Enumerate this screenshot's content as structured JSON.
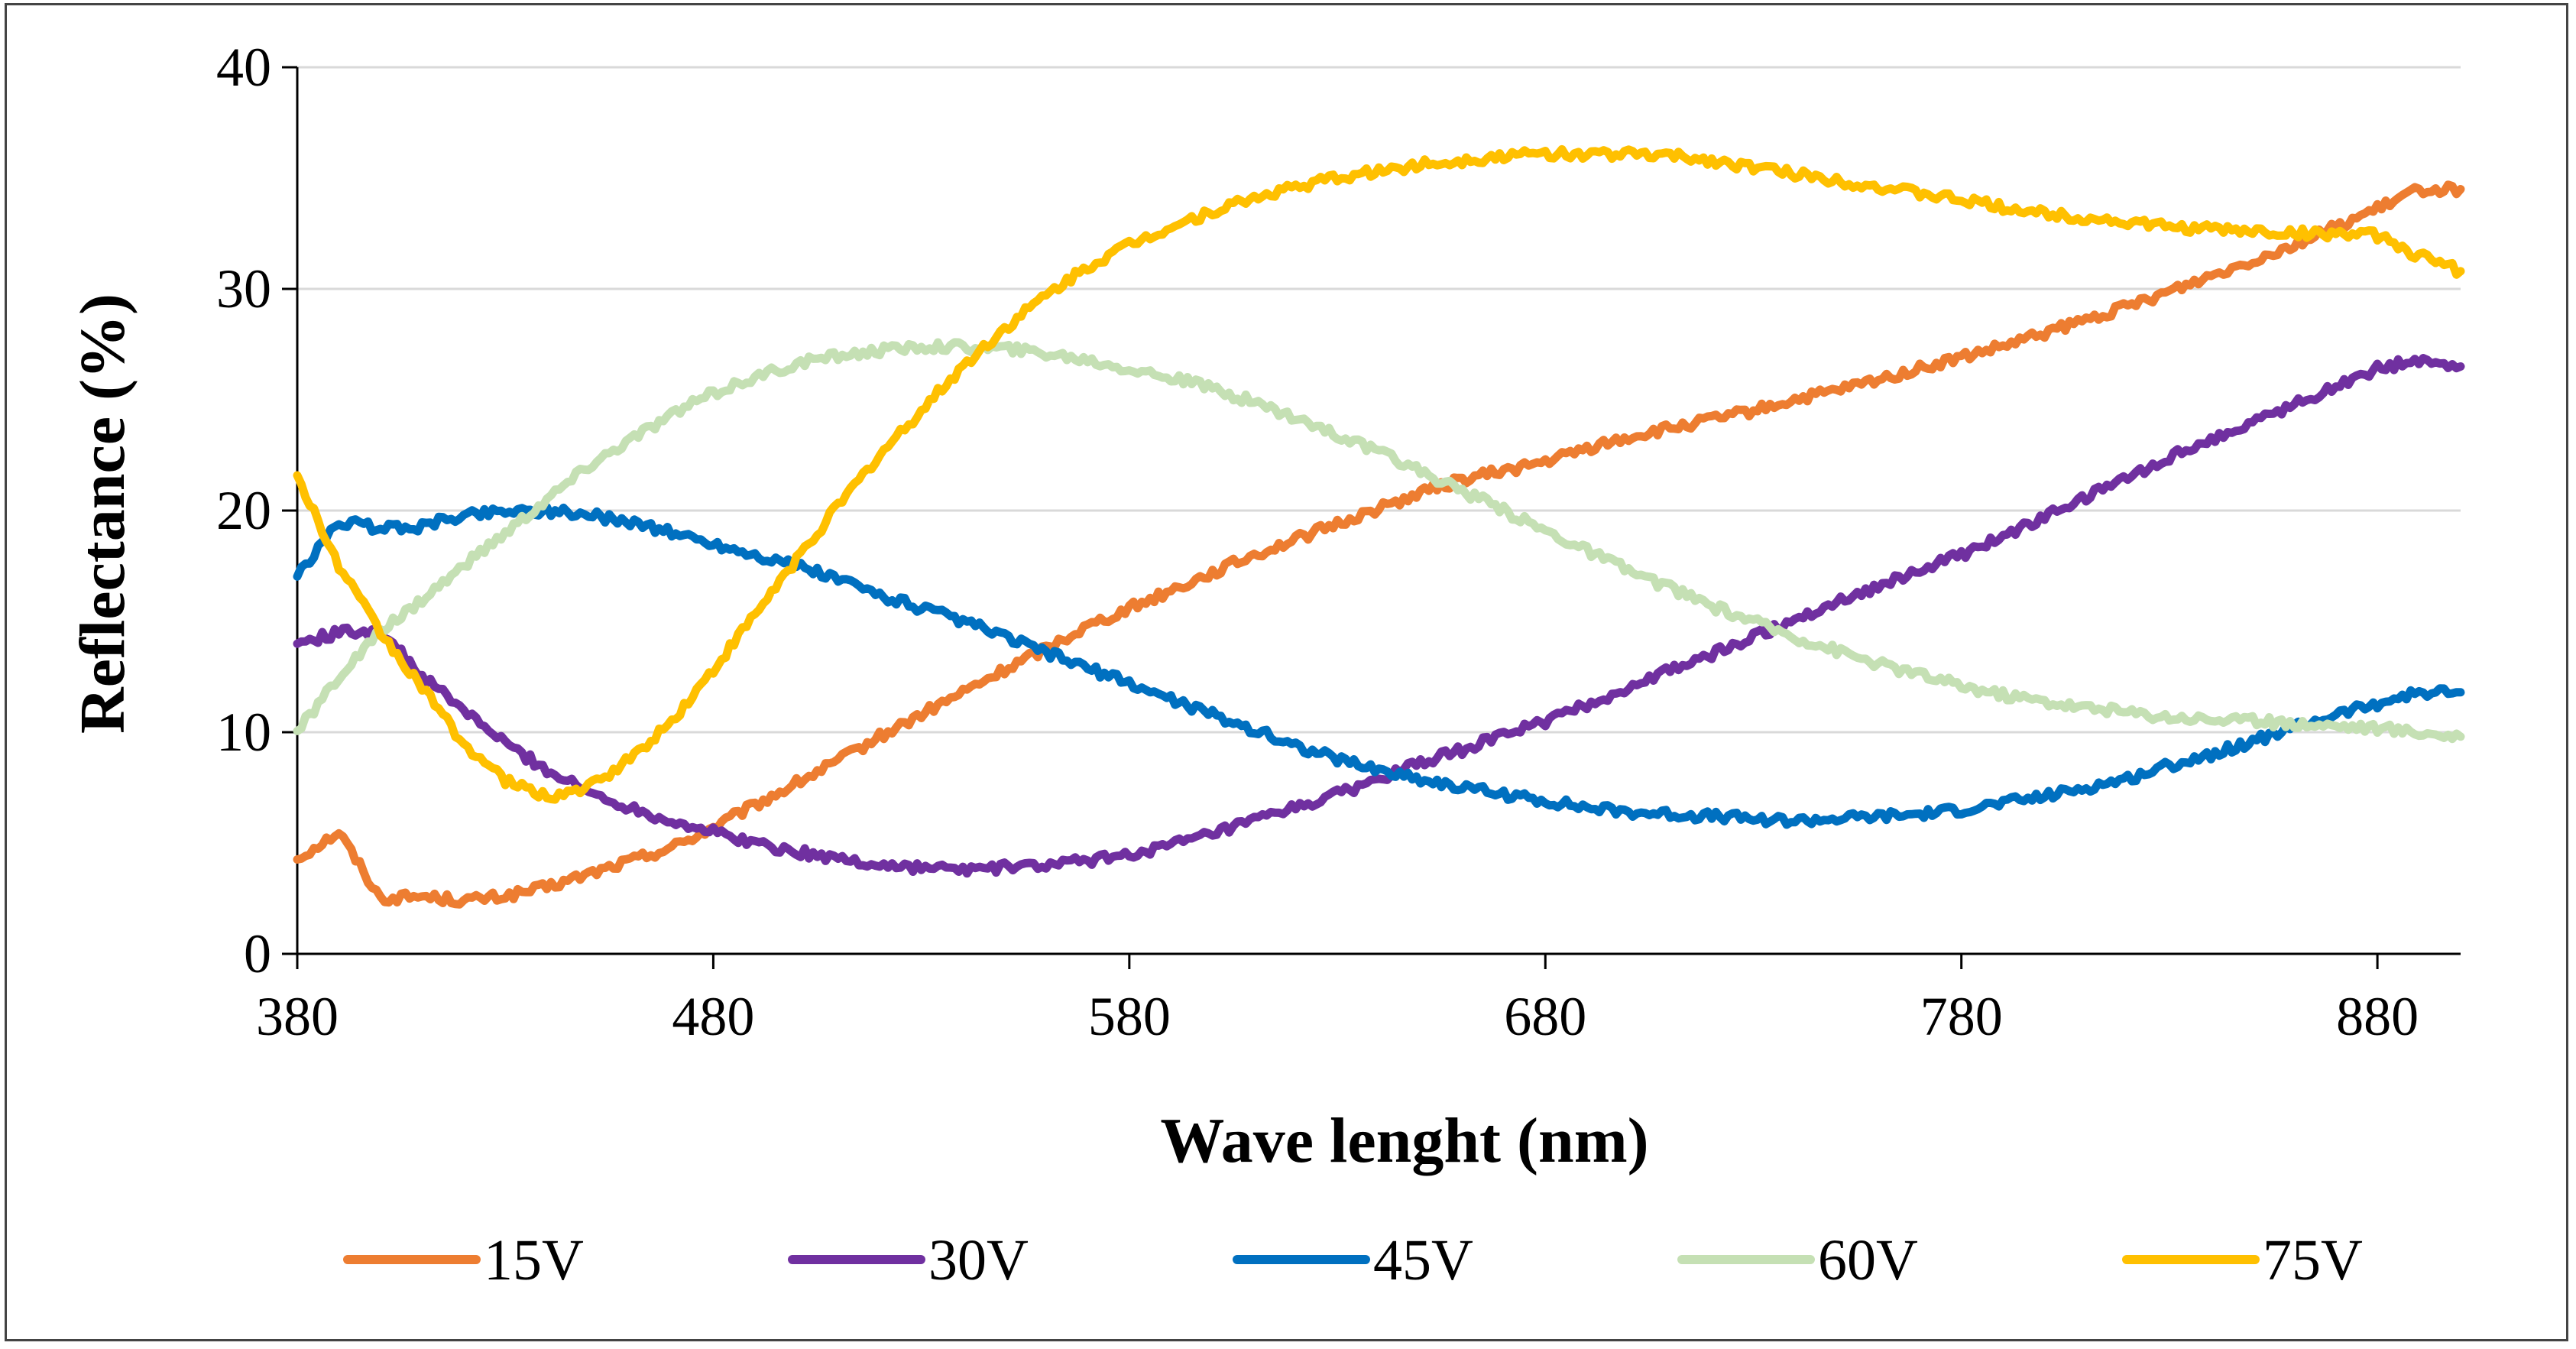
{
  "chart_data": {
    "type": "line",
    "title": "",
    "xlabel": "Wave lenght (nm)",
    "ylabel": "Reflectance (%)",
    "xlim": [
      380,
      900
    ],
    "ylim": [
      0,
      40
    ],
    "xticks": [
      380,
      480,
      580,
      680,
      780,
      880
    ],
    "yticks": [
      0,
      10,
      20,
      30,
      40
    ],
    "grid": "horizontal",
    "legend_position": "bottom",
    "x": [
      380,
      390,
      400,
      410,
      420,
      430,
      440,
      450,
      460,
      470,
      480,
      490,
      500,
      510,
      520,
      530,
      540,
      550,
      560,
      570,
      580,
      590,
      600,
      610,
      620,
      630,
      640,
      650,
      660,
      670,
      680,
      690,
      700,
      710,
      720,
      730,
      740,
      750,
      760,
      770,
      780,
      790,
      800,
      810,
      820,
      830,
      840,
      850,
      860,
      870,
      880,
      890,
      900
    ],
    "series": [
      {
        "name": "15V",
        "color": "#ED7D31",
        "values": [
          4.3,
          5.5,
          2.5,
          2.6,
          2.4,
          2.6,
          3.0,
          3.6,
          4.2,
          4.8,
          5.7,
          6.7,
          7.7,
          8.7,
          9.8,
          10.8,
          11.8,
          12.8,
          13.8,
          14.8,
          15.6,
          16.4,
          17.2,
          18.0,
          18.7,
          19.4,
          20.1,
          20.8,
          21.4,
          21.8,
          22.2,
          22.8,
          23.3,
          23.7,
          24.1,
          24.5,
          25.0,
          25.4,
          25.9,
          26.4,
          26.9,
          27.4,
          28.0,
          28.6,
          29.2,
          29.9,
          30.6,
          31.3,
          32.0,
          32.8,
          33.6,
          34.5,
          34.5
        ]
      },
      {
        "name": "30V",
        "color": "#7030A0",
        "values": [
          14.0,
          14.5,
          14.6,
          12.5,
          11.0,
          9.5,
          8.3,
          7.3,
          6.6,
          6.0,
          5.5,
          5.0,
          4.6,
          4.3,
          4.0,
          3.9,
          3.8,
          3.9,
          4.0,
          4.2,
          4.5,
          4.9,
          5.4,
          6.0,
          6.6,
          7.2,
          7.9,
          8.6,
          9.2,
          9.9,
          10.5,
          11.2,
          12.0,
          12.8,
          13.5,
          14.3,
          15.1,
          15.9,
          16.6,
          17.3,
          18.0,
          18.8,
          19.7,
          20.6,
          21.5,
          22.4,
          23.2,
          24.0,
          24.8,
          25.6,
          26.4,
          26.8,
          26.5
        ]
      },
      {
        "name": "45V",
        "color": "#0070C0",
        "values": [
          17.0,
          19.5,
          19.2,
          19.3,
          19.8,
          20.0,
          20.0,
          19.8,
          19.5,
          19.0,
          18.5,
          18.0,
          17.5,
          16.9,
          16.2,
          15.6,
          15.0,
          14.3,
          13.6,
          12.9,
          12.2,
          11.5,
          10.8,
          10.1,
          9.4,
          8.8,
          8.3,
          7.9,
          7.5,
          7.2,
          6.9,
          6.6,
          6.4,
          6.3,
          6.2,
          6.1,
          6.0,
          6.1,
          6.2,
          6.3,
          6.5,
          6.8,
          7.1,
          7.5,
          7.9,
          8.5,
          9.0,
          9.6,
          10.2,
          10.8,
          11.3,
          11.8,
          11.8
        ]
      },
      {
        "name": "60V",
        "color": "#C5E0B4",
        "values": [
          10.0,
          12.5,
          14.5,
          16.0,
          17.5,
          19.0,
          20.5,
          22.0,
          23.2,
          24.3,
          25.3,
          26.0,
          26.6,
          27.0,
          27.2,
          27.4,
          27.4,
          27.3,
          27.1,
          26.8,
          26.4,
          26.0,
          25.5,
          24.9,
          24.2,
          23.4,
          22.6,
          21.8,
          20.9,
          20.0,
          19.1,
          18.2,
          17.3,
          16.5,
          15.7,
          15.0,
          14.3,
          13.7,
          13.1,
          12.6,
          12.1,
          11.7,
          11.4,
          11.1,
          10.9,
          10.7,
          10.6,
          10.5,
          10.4,
          10.3,
          10.2,
          10.0,
          9.8
        ]
      },
      {
        "name": "75V",
        "color": "#FFC000",
        "values": [
          21.5,
          17.5,
          14.5,
          12.0,
          9.5,
          7.8,
          7.1,
          7.5,
          8.8,
          10.5,
          12.8,
          15.3,
          17.8,
          20.2,
          22.5,
          24.5,
          26.5,
          28.2,
          29.7,
          31.0,
          32.0,
          32.8,
          33.5,
          34.1,
          34.6,
          35.0,
          35.3,
          35.6,
          35.8,
          36.0,
          36.1,
          36.1,
          36.1,
          36.0,
          35.8,
          35.5,
          35.2,
          34.9,
          34.6,
          34.3,
          34.0,
          33.7,
          33.4,
          33.2,
          33.0,
          32.8,
          32.7,
          32.6,
          32.5,
          32.5,
          32.4,
          31.5,
          30.8
        ]
      }
    ]
  }
}
